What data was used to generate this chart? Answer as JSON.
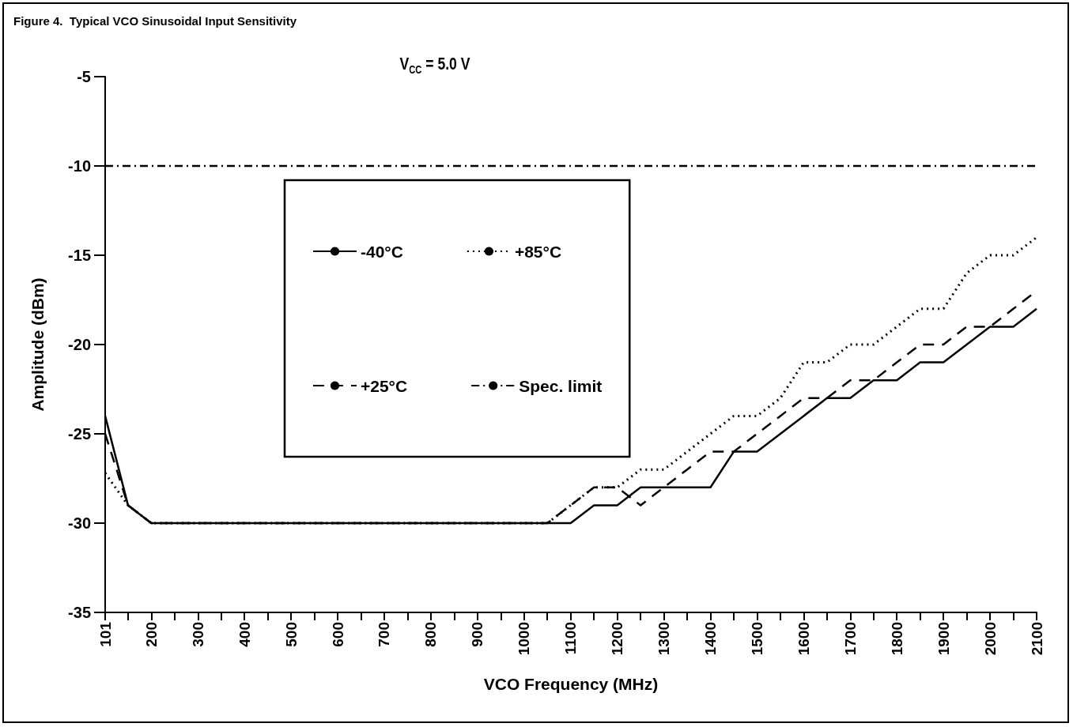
{
  "chart_data": {
    "type": "line",
    "title": "Figure 4.  Typical VCO Sinusoidal Input Sensitivity",
    "subtitle": "V$_{CC}$ = 5.0 V",
    "xlabel": "VCO Frequency (MHz)",
    "ylabel": "Amplitude (dBm)",
    "xlim": [
      101,
      2100
    ],
    "xticks": [
      101,
      {
        "value": 150,
        "label": null
      },
      200,
      {
        "value": 250,
        "label": null
      },
      300,
      {
        "value": 350,
        "label": null
      },
      400,
      {
        "value": 450,
        "label": null
      },
      500,
      {
        "value": 550,
        "label": null
      },
      600,
      {
        "value": 650,
        "label": null
      },
      700,
      {
        "value": 750,
        "label": null
      },
      800,
      {
        "value": 850,
        "label": null
      },
      900,
      {
        "value": 950,
        "label": null
      },
      1000,
      {
        "value": 1050,
        "label": null
      },
      1100,
      {
        "value": 1150,
        "label": null
      },
      1200,
      {
        "value": 1250,
        "label": null
      },
      1300,
      {
        "value": 1350,
        "label": null
      },
      1400,
      {
        "value": 1450,
        "label": null
      },
      1500,
      {
        "value": 1550,
        "label": null
      },
      1600,
      {
        "value": 1650,
        "label": null
      },
      1700,
      {
        "value": 1750,
        "label": null
      },
      1800,
      {
        "value": 1850,
        "label": null
      },
      1900,
      {
        "value": 1950,
        "label": null
      },
      2000,
      {
        "value": 2050,
        "label": null
      },
      2100
    ],
    "ylim": [
      -35,
      -5
    ],
    "yticks": [
      -35,
      -30,
      -25,
      -20,
      -15,
      -10,
      -5
    ],
    "grid": false,
    "legend": "top left",
    "marker": "none",
    "series": [
      {
        "name": "-40°C",
        "color": "#000000",
        "line_style": "solid",
        "x": [
          101,
          150,
          200,
          1100,
          1150,
          1200,
          1250,
          1300,
          1350,
          1400,
          1450,
          1500,
          1550,
          1600,
          1650,
          1700,
          1750,
          1800,
          1850,
          1900,
          1950,
          2000,
          2050,
          2100
        ],
        "values": [
          -24,
          -29,
          -30,
          -30,
          -29,
          -29,
          -28,
          -28,
          -28,
          -28,
          -26,
          -26,
          -25,
          -24,
          -23,
          -23,
          -22,
          -22,
          -21,
          -21,
          -20,
          -19,
          -19,
          -18
        ]
      },
      {
        "name": "+85°C",
        "color": "#000000",
        "line_style": "dotted",
        "x": [
          101,
          150,
          200,
          1050,
          1100,
          1150,
          1200,
          1250,
          1300,
          1350,
          1400,
          1450,
          1500,
          1550,
          1600,
          1650,
          1700,
          1750,
          1800,
          1850,
          1900,
          1950,
          2000,
          2050,
          2100
        ],
        "values": [
          -27.2,
          -29,
          -30,
          -30,
          -29,
          -28,
          -28,
          -27,
          -27,
          -26,
          -25,
          -24,
          -24,
          -23,
          -21,
          -21,
          -20,
          -20,
          -19,
          -18,
          -18,
          -16,
          -15,
          -15,
          -14
        ]
      },
      {
        "name": "+25°C",
        "color": "#000000",
        "line_style": "dashed",
        "x": [
          101,
          150,
          200,
          1050,
          1100,
          1150,
          1200,
          1250,
          1300,
          1350,
          1400,
          1450,
          1500,
          1550,
          1600,
          1650,
          1700,
          1750,
          1800,
          1850,
          1900,
          1950,
          2000,
          2050,
          2100
        ],
        "values": [
          -25,
          -29,
          -30,
          -30,
          -29,
          -28,
          -28,
          -29,
          -28,
          -27,
          -26,
          -26,
          -25,
          -24,
          -23,
          -23,
          -22,
          -22,
          -21,
          -20,
          -20,
          -19,
          -19,
          -18,
          -17
        ]
      },
      {
        "name": "Spec. limit",
        "color": "#000000",
        "line_style": "dashdot",
        "x": [
          101,
          2100
        ],
        "values": [
          -10,
          -10
        ]
      }
    ]
  }
}
